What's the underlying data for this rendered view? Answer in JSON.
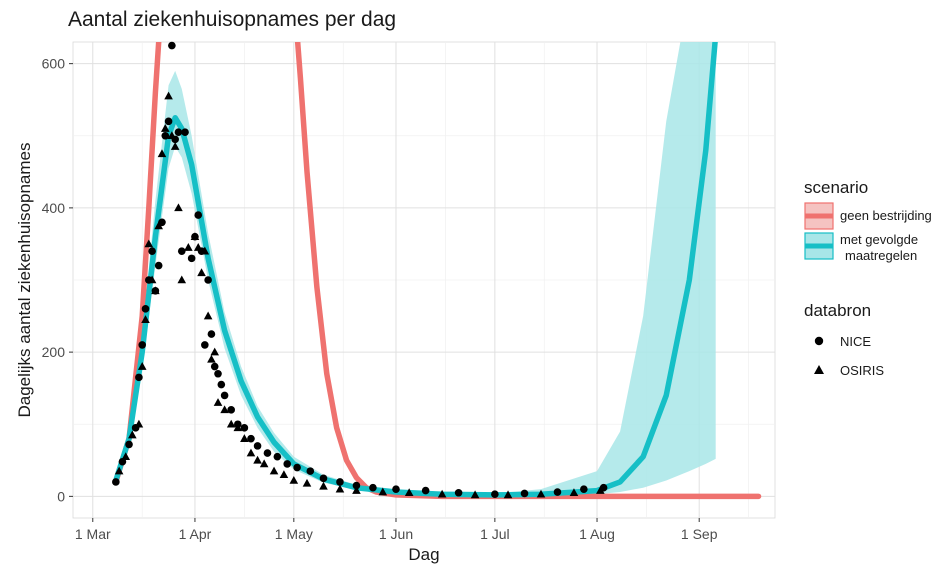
{
  "chart_data": {
    "type": "line",
    "title": "Aantal ziekenhuisopnames per dag",
    "xlabel": "Dag",
    "ylabel": "Dagelijks aantal ziekenhuisopnames",
    "x_ticks": [
      "1 Mar",
      "1 Apr",
      "1 May",
      "1 Jun",
      "1 Jul",
      "1 Aug",
      "1 Sep"
    ],
    "y_ticks": [
      0,
      200,
      400,
      600
    ],
    "xlim": [
      "2020-02-24",
      "2020-09-24"
    ],
    "ylim": [
      -30,
      630
    ],
    "grid": true,
    "legend_placement": "right",
    "legend": {
      "scenario_title": "scenario",
      "scenario_items": [
        {
          "label": "geen bestrijding",
          "color": "#ef726f",
          "fill": "#f5c3c1"
        },
        {
          "label": "met gevolgde\nmaatregelen",
          "color": "#16bfc6",
          "fill": "#a8e6e8"
        }
      ],
      "source_title": "databron",
      "source_items": [
        {
          "label": "NICE",
          "shape": "circle"
        },
        {
          "label": "OSIRIS",
          "shape": "triangle"
        }
      ]
    },
    "series": [
      {
        "name": "geen bestrijding",
        "color": "#ef726f",
        "x": [
          "2020-03-08",
          "2020-03-12",
          "2020-03-16",
          "2020-03-18",
          "2020-03-20",
          "2020-03-22",
          "2020-05-01",
          "2020-05-03",
          "2020-05-05",
          "2020-05-08",
          "2020-05-11",
          "2020-05-14",
          "2020-05-17",
          "2020-05-20",
          "2020-05-23",
          "2020-05-26",
          "2020-06-01",
          "2020-06-15",
          "2020-07-15",
          "2020-08-15",
          "2020-09-15",
          "2020-09-19"
        ],
        "y": [
          20,
          80,
          250,
          400,
          560,
          700,
          700,
          580,
          450,
          290,
          170,
          95,
          50,
          26,
          12,
          6,
          2,
          0,
          0,
          0,
          0,
          0
        ]
      },
      {
        "name": "met gevolgde maatregelen",
        "color": "#16bfc6",
        "x": [
          "2020-03-08",
          "2020-03-12",
          "2020-03-16",
          "2020-03-20",
          "2020-03-24",
          "2020-03-26",
          "2020-03-28",
          "2020-03-31",
          "2020-04-05",
          "2020-04-10",
          "2020-04-15",
          "2020-04-20",
          "2020-04-25",
          "2020-05-01",
          "2020-05-10",
          "2020-05-20",
          "2020-06-01",
          "2020-06-15",
          "2020-07-01",
          "2020-07-15",
          "2020-08-01",
          "2020-08-08",
          "2020-08-15",
          "2020-08-22",
          "2020-08-29",
          "2020-09-03",
          "2020-09-06"
        ],
        "y": [
          22,
          80,
          200,
          360,
          500,
          525,
          510,
          460,
          330,
          230,
          160,
          110,
          75,
          45,
          24,
          12,
          6,
          3,
          2,
          3,
          8,
          20,
          55,
          140,
          300,
          480,
          640
        ],
        "band_lower": [
          18,
          70,
          175,
          320,
          455,
          485,
          470,
          420,
          300,
          205,
          140,
          95,
          62,
          37,
          19,
          9,
          4,
          2,
          1,
          1,
          3,
          6,
          12,
          22,
          35,
          45,
          52
        ],
        "band_upper": [
          26,
          90,
          225,
          410,
          570,
          590,
          565,
          500,
          365,
          255,
          180,
          125,
          88,
          55,
          30,
          16,
          9,
          5,
          4,
          10,
          35,
          90,
          250,
          520,
          700,
          700,
          700
        ]
      }
    ],
    "points_NICE": {
      "x": [
        "2020-03-08",
        "2020-03-10",
        "2020-03-12",
        "2020-03-14",
        "2020-03-15",
        "2020-03-16",
        "2020-03-17",
        "2020-03-18",
        "2020-03-19",
        "2020-03-20",
        "2020-03-21",
        "2020-03-22",
        "2020-03-23",
        "2020-03-24",
        "2020-03-25",
        "2020-03-26",
        "2020-03-27",
        "2020-03-28",
        "2020-03-29",
        "2020-03-31",
        "2020-04-01",
        "2020-04-02",
        "2020-04-03",
        "2020-04-04",
        "2020-04-05",
        "2020-04-06",
        "2020-04-07",
        "2020-04-08",
        "2020-04-09",
        "2020-04-10",
        "2020-04-12",
        "2020-04-14",
        "2020-04-16",
        "2020-04-18",
        "2020-04-20",
        "2020-04-23",
        "2020-04-26",
        "2020-04-29",
        "2020-05-02",
        "2020-05-06",
        "2020-05-10",
        "2020-05-15",
        "2020-05-20",
        "2020-05-25",
        "2020-06-01",
        "2020-06-10",
        "2020-06-20",
        "2020-07-01",
        "2020-07-10",
        "2020-07-20",
        "2020-07-28",
        "2020-08-03"
      ],
      "y": [
        20,
        48,
        72,
        95,
        165,
        210,
        260,
        300,
        340,
        285,
        320,
        380,
        500,
        520,
        625,
        495,
        505,
        340,
        505,
        330,
        360,
        390,
        340,
        210,
        300,
        225,
        180,
        170,
        155,
        140,
        120,
        100,
        95,
        80,
        70,
        60,
        55,
        45,
        40,
        35,
        25,
        20,
        15,
        12,
        10,
        8,
        5,
        3,
        4,
        6,
        10,
        12
      ]
    },
    "points_OSIRIS": {
      "x": [
        "2020-03-09",
        "2020-03-11",
        "2020-03-13",
        "2020-03-15",
        "2020-03-16",
        "2020-03-17",
        "2020-03-18",
        "2020-03-19",
        "2020-03-20",
        "2020-03-21",
        "2020-03-22",
        "2020-03-23",
        "2020-03-24",
        "2020-03-25",
        "2020-03-26",
        "2020-03-27",
        "2020-03-28",
        "2020-03-30",
        "2020-04-01",
        "2020-04-02",
        "2020-04-03",
        "2020-04-04",
        "2020-04-05",
        "2020-04-06",
        "2020-04-07",
        "2020-04-08",
        "2020-04-10",
        "2020-04-12",
        "2020-04-14",
        "2020-04-16",
        "2020-04-18",
        "2020-04-20",
        "2020-04-22",
        "2020-04-25",
        "2020-04-28",
        "2020-05-01",
        "2020-05-05",
        "2020-05-10",
        "2020-05-15",
        "2020-05-20",
        "2020-05-28",
        "2020-06-05",
        "2020-06-15",
        "2020-06-25",
        "2020-07-05",
        "2020-07-15",
        "2020-07-25",
        "2020-08-02"
      ],
      "y": [
        35,
        55,
        85,
        100,
        180,
        245,
        350,
        300,
        285,
        375,
        475,
        510,
        555,
        500,
        485,
        400,
        300,
        345,
        360,
        345,
        310,
        340,
        250,
        190,
        200,
        130,
        120,
        100,
        95,
        80,
        60,
        50,
        45,
        35,
        30,
        22,
        18,
        14,
        10,
        8,
        6,
        5,
        3,
        2,
        2,
        3,
        5,
        8
      ]
    }
  }
}
